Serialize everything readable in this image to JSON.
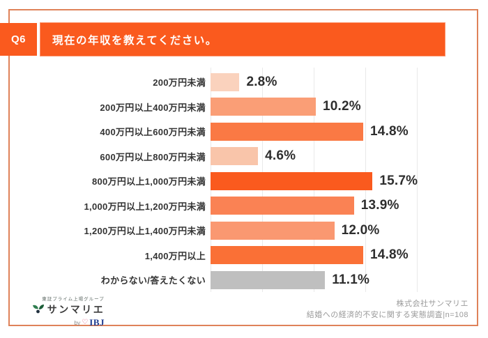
{
  "header": {
    "q_label": "Q6",
    "title": "現在の年収を教えてください。"
  },
  "chart_data": {
    "type": "bar",
    "orientation": "horizontal",
    "title": "現在の年収を教えてください。",
    "categories": [
      "200万円未満",
      "200万円以上400万円未満",
      "400万円以上600万円未満",
      "600万円以上800万円未満",
      "800万円以上1,000万円未満",
      "1,000万円以上1,200万円未満",
      "1,200万円以上1,400万円未満",
      "1,400万円以上",
      "わからない/答えたくない"
    ],
    "values": [
      2.8,
      10.2,
      14.8,
      4.6,
      15.7,
      13.9,
      12.0,
      14.8,
      11.1
    ],
    "value_labels": [
      "2.8%",
      "10.2%",
      "14.8%",
      "4.6%",
      "15.7%",
      "13.9%",
      "12.0%",
      "14.8%",
      "11.1%"
    ],
    "bar_colors": [
      "#fad2bd",
      "#fa9e76",
      "#fa7944",
      "#f9c5aa",
      "#fa5a1e",
      "#fa8254",
      "#fa9871",
      "#fa7036",
      "#bfbfbf"
    ],
    "xlim": [
      0,
      20
    ],
    "gridline_step_percent": 5,
    "grid": true,
    "legend": "none",
    "xlabel": "",
    "ylabel": ""
  },
  "footer": {
    "logo": {
      "tagline": "東証プライム上場グループ",
      "brand": "サンマリエ",
      "by_word": "by",
      "ibj": "IBJ"
    },
    "credit_line1": "株式会社サンマリエ",
    "credit_line2": "結婚への経済的不安に関する実態調査|n=108"
  },
  "colors": {
    "accent_orange": "#fa5a1e",
    "frame_border": "#df8259",
    "grid_line": "#e9e9e9",
    "gray_bar": "#bfbfbf",
    "text_dark": "#333333",
    "text_gray": "#9a9a9a",
    "ibj_blue": "#1c3a8f",
    "heart_pink": "#e14b76",
    "holly_green": "#2f7d4f"
  }
}
